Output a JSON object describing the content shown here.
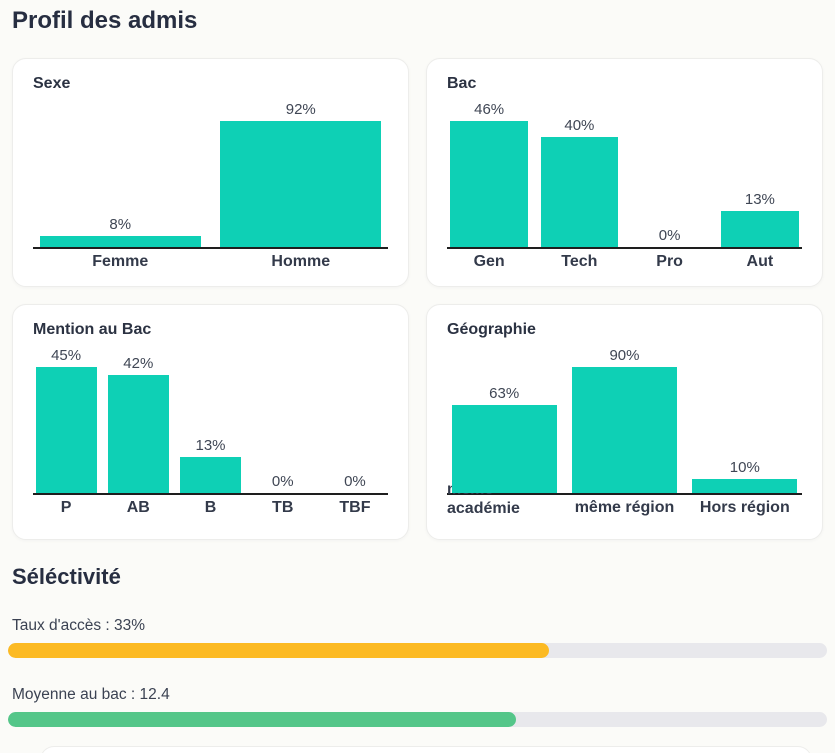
{
  "page": {
    "title": "Profil des admis"
  },
  "chart_data": [
    {
      "type": "bar",
      "title": "Sexe",
      "categories": [
        "Femme",
        "Homme"
      ],
      "values": [
        8,
        92
      ],
      "value_labels": [
        "8%",
        "92%"
      ],
      "bar_color": "#0ed0b5",
      "ylim": [
        0,
        92
      ],
      "grid": false,
      "legend": "none"
    },
    {
      "type": "bar",
      "title": "Bac",
      "categories": [
        "Gen",
        "Tech",
        "Pro",
        "Aut"
      ],
      "values": [
        46,
        40,
        0,
        13
      ],
      "value_labels": [
        "46%",
        "40%",
        "0%",
        "13%"
      ],
      "bar_color": "#0ed0b5",
      "ylim": [
        0,
        46
      ],
      "grid": false,
      "legend": "none"
    },
    {
      "type": "bar",
      "title": "Mention au Bac",
      "categories": [
        "P",
        "AB",
        "B",
        "TB",
        "TBF"
      ],
      "values": [
        45,
        42,
        13,
        0,
        0
      ],
      "value_labels": [
        "45%",
        "42%",
        "13%",
        "0%",
        "0%"
      ],
      "bar_color": "#0ed0b5",
      "ylim": [
        0,
        45
      ],
      "grid": false,
      "legend": "none"
    },
    {
      "type": "bar",
      "title": "Géographie",
      "categories": [
        "même académie",
        "même région",
        "Hors région"
      ],
      "values": [
        63,
        90,
        10
      ],
      "value_labels": [
        "63%",
        "90%",
        "10%"
      ],
      "bar_color": "#0ed0b5",
      "ylim": [
        0,
        90
      ],
      "grid": false,
      "legend": "none",
      "first_label_wraps_behind_bar": true
    }
  ],
  "selectivity": {
    "title": "Séléctivité",
    "items": [
      {
        "label": "Taux d'accès : 33%",
        "value": "33%",
        "fill_percent": 66,
        "fill_color": "#fcba23"
      },
      {
        "label": "Moyenne au bac : 12.4",
        "value": "12.4",
        "fill_percent": 62,
        "fill_color": "#54c689"
      }
    ]
  },
  "colors": {
    "bar_teal": "#0ed0b5",
    "progress_orange": "#fcba23",
    "progress_green": "#54c689",
    "progress_track": "#e8e8ec",
    "heading_text": "#272e41",
    "axis_line": "#1e1e1e",
    "card_background": "#ffffff",
    "page_background": "#fbfbf8"
  }
}
